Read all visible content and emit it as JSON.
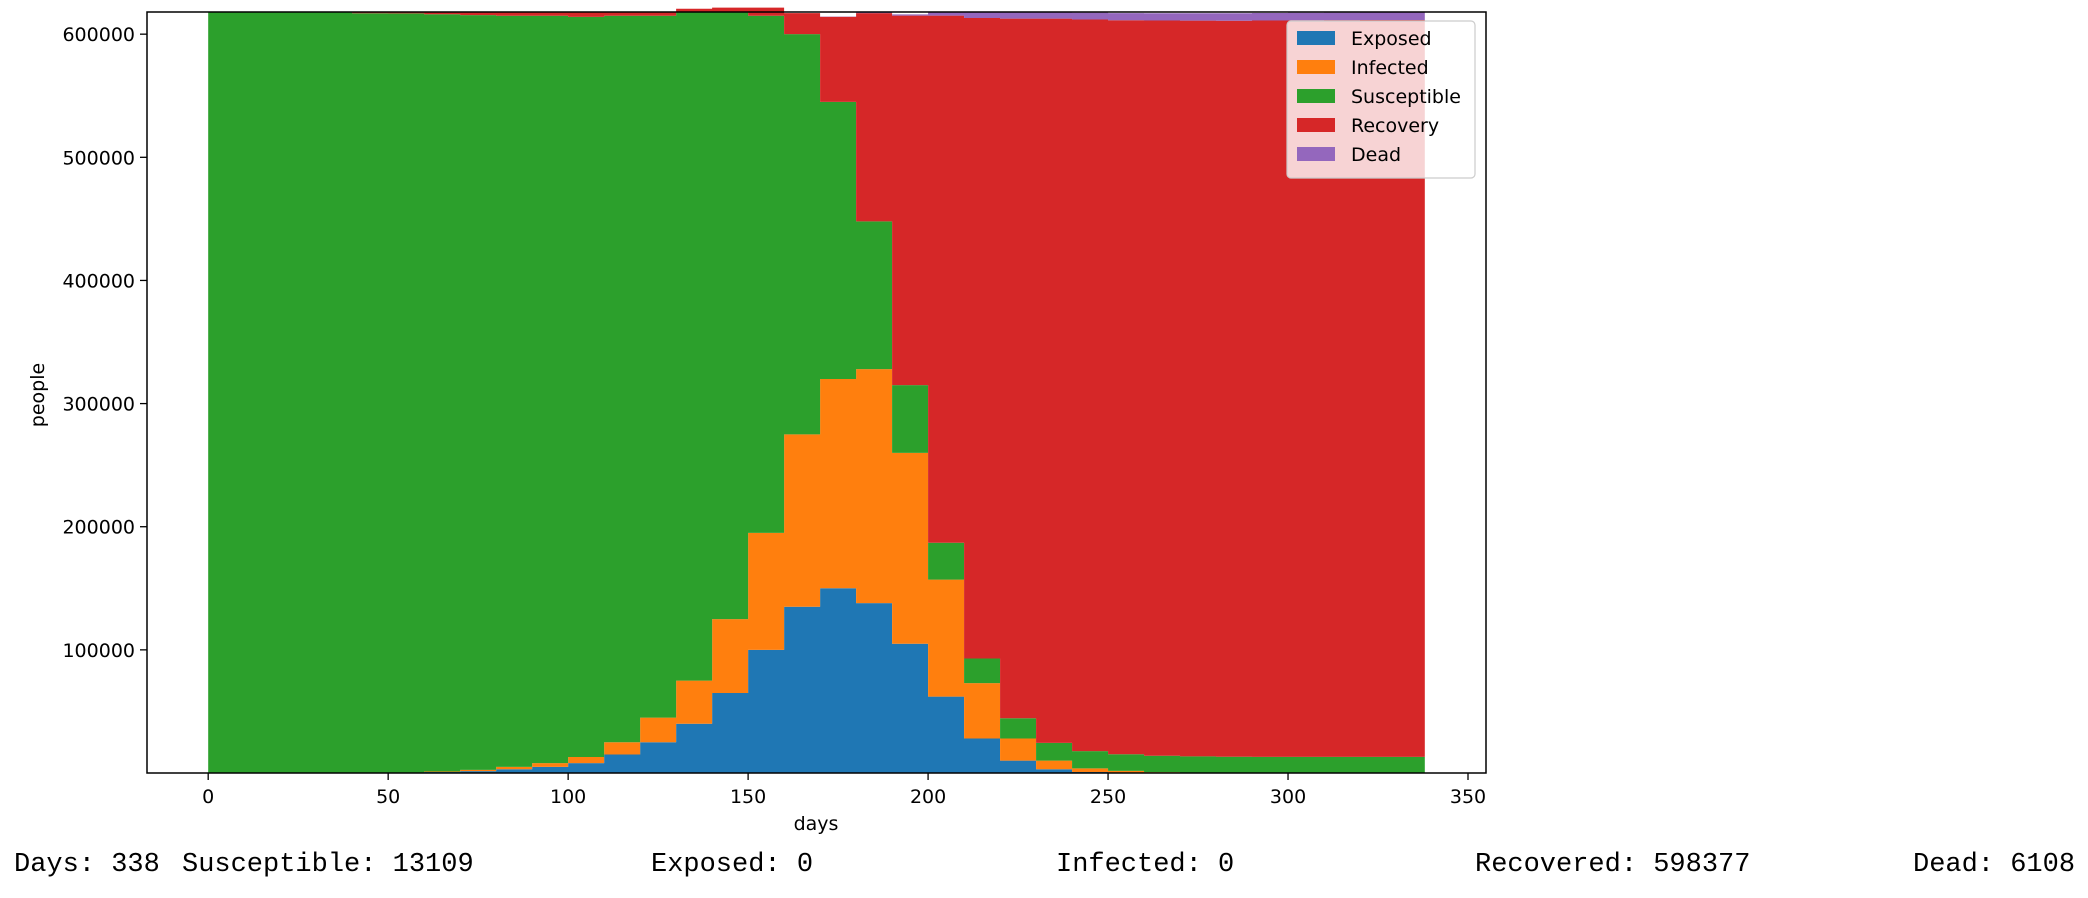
{
  "chart_data": {
    "type": "area",
    "stacked": true,
    "step": true,
    "xlabel": "days",
    "ylabel": "people",
    "xlim": [
      -17,
      355
    ],
    "ylim": [
      0,
      618000
    ],
    "xticks": [
      0,
      50,
      100,
      150,
      200,
      250,
      300,
      350
    ],
    "yticks": [
      100000,
      200000,
      300000,
      400000,
      500000,
      600000
    ],
    "grid": false,
    "legend_position": "top-right",
    "x": [
      0,
      20,
      40,
      50,
      60,
      70,
      80,
      90,
      100,
      110,
      120,
      130,
      140,
      150,
      160,
      170,
      180,
      190,
      200,
      210,
      220,
      230,
      240,
      250,
      260,
      270,
      280,
      290,
      300,
      310,
      320,
      330,
      338
    ],
    "series": [
      {
        "name": "Exposed",
        "color": "#1f77b4",
        "values": [
          0,
          0,
          0,
          200,
          800,
          1500,
          3000,
          5000,
          8000,
          15000,
          25000,
          40000,
          65000,
          100000,
          135000,
          150000,
          138000,
          105000,
          62000,
          28000,
          10000,
          3000,
          800,
          200,
          0,
          0,
          0,
          0,
          0,
          0,
          0,
          0,
          0
        ]
      },
      {
        "name": "Infected",
        "color": "#ff7f0e",
        "values": [
          0,
          0,
          0,
          200,
          400,
          1000,
          2000,
          3000,
          5000,
          10000,
          20000,
          35000,
          60000,
          95000,
          140000,
          170000,
          190000,
          155000,
          95000,
          45000,
          18000,
          7000,
          3000,
          1500,
          700,
          300,
          0,
          0,
          0,
          0,
          0,
          0,
          0
        ]
      },
      {
        "name": "Susceptible",
        "color": "#2ca02c",
        "values": [
          617594,
          617594,
          617000,
          616500,
          615000,
          613000,
          610000,
          607000,
          601000,
          590000,
          570000,
          543000,
          493000,
          420000,
          325000,
          225000,
          120000,
          55000,
          30000,
          20000,
          16500,
          14500,
          14000,
          13500,
          13300,
          13200,
          13150,
          13130,
          13120,
          13115,
          13110,
          13109,
          13109
        ]
      },
      {
        "name": "Recovery",
        "color": "#d62728",
        "values": [
          0,
          0,
          594,
          694,
          1394,
          2094,
          2594,
          2594,
          3594,
          2594,
          2594,
          2594,
          3594,
          6594,
          17094,
          69094,
          169094,
          300094,
          428094,
          520094,
          568094,
          588094,
          594094,
          596094,
          597094,
          597494,
          597794,
          598000,
          598200,
          598300,
          598350,
          598377,
          598377
        ]
      },
      {
        "name": "Dead",
        "color": "#9467bd",
        "values": [
          0,
          0,
          0,
          0,
          0,
          0,
          0,
          0,
          0,
          0,
          0,
          0,
          0,
          0,
          0,
          300,
          500,
          1000,
          2500,
          4500,
          5000,
          5400,
          5600,
          5800,
          5900,
          6000,
          6050,
          6070,
          6080,
          6090,
          6100,
          6108,
          6108
        ]
      }
    ]
  },
  "status": {
    "days": "Days: 338",
    "susceptible": "Susceptible: 13109",
    "exposed": "Exposed: 0",
    "infected": "Infected: 0",
    "recovered": "Recovered: 598377",
    "dead": "Dead: 6108"
  }
}
